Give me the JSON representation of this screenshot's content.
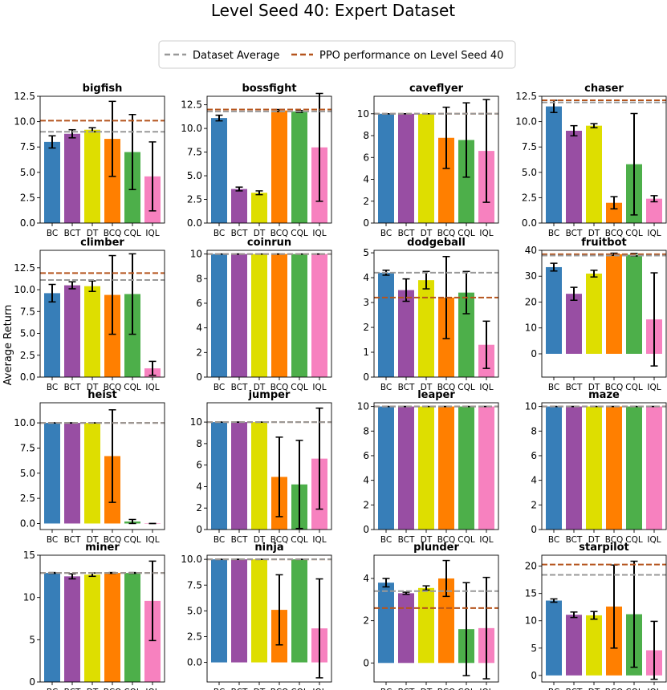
{
  "figure": {
    "title": "Level Seed 40: Expert Dataset",
    "ylabel": "Average Return",
    "legend": {
      "placement": "top-center",
      "items": [
        {
          "label": "Dataset Average",
          "color": "#999999"
        },
        {
          "label": "PPO performance on Level Seed 40",
          "color": "#b5541d"
        }
      ]
    }
  },
  "colors": {
    "BC": "#377eb8",
    "BCT": "#984ea3",
    "DT": "#dede00",
    "BCQ": "#ff7f00",
    "CQL": "#4daf4a",
    "IQL": "#f781bf",
    "dataset_line": "#999999",
    "ppo_line": "#b5541d"
  },
  "chart_data": [
    {
      "type": "bar",
      "title": "bigfish",
      "categories": [
        "BC",
        "BCT",
        "DT",
        "BCQ",
        "CQL",
        "IQL"
      ],
      "values": [
        8.0,
        8.8,
        9.2,
        8.3,
        7.0,
        4.6
      ],
      "errors": [
        0.6,
        0.4,
        0.2,
        3.7,
        3.7,
        3.4
      ],
      "dataset_avg": 9.0,
      "ppo": 10.1,
      "ylim": [
        0,
        12.5
      ],
      "yticks": [
        "0.0",
        "2.5",
        "5.0",
        "7.5",
        "10.0",
        "12.5"
      ]
    },
    {
      "type": "bar",
      "title": "bossfight",
      "categories": [
        "BC",
        "BCT",
        "DT",
        "BCQ",
        "CQL",
        "IQL"
      ],
      "values": [
        11.1,
        3.6,
        3.2,
        11.9,
        11.8,
        8.0
      ],
      "errors": [
        0.3,
        0.2,
        0.2,
        0.1,
        0.1,
        5.7
      ],
      "dataset_avg": 11.8,
      "ppo": 12.0,
      "ylim": [
        0,
        13.4
      ],
      "yticks": [
        "0.0",
        "2.5",
        "5.0",
        "7.5",
        "10.0",
        "12.5"
      ]
    },
    {
      "type": "bar",
      "title": "caveflyer",
      "categories": [
        "BC",
        "BCT",
        "DT",
        "BCQ",
        "CQL",
        "IQL"
      ],
      "values": [
        10.0,
        10.0,
        10.0,
        7.8,
        7.6,
        6.6
      ],
      "errors": [
        0.0,
        0.0,
        0.0,
        2.8,
        3.4,
        4.7
      ],
      "dataset_avg": 10.0,
      "ppo": 10.0,
      "ylim": [
        0,
        11.6
      ],
      "yticks": [
        "0",
        "2",
        "4",
        "6",
        "8",
        "10"
      ]
    },
    {
      "type": "bar",
      "title": "chaser",
      "categories": [
        "BC",
        "BCT",
        "DT",
        "BCQ",
        "CQL",
        "IQL"
      ],
      "values": [
        11.5,
        9.1,
        9.6,
        2.0,
        5.8,
        2.4
      ],
      "errors": [
        0.6,
        0.5,
        0.2,
        0.6,
        5.0,
        0.3
      ],
      "dataset_avg": 11.9,
      "ppo": 12.1,
      "ylim": [
        0,
        12.5
      ],
      "yticks": [
        "0.0",
        "2.5",
        "5.0",
        "7.5",
        "10.0",
        "12.5"
      ]
    },
    {
      "type": "bar",
      "title": "climber",
      "categories": [
        "BC",
        "BCT",
        "DT",
        "BCQ",
        "CQL",
        "IQL"
      ],
      "values": [
        9.6,
        10.5,
        10.4,
        9.4,
        9.5,
        1.0
      ],
      "errors": [
        1.0,
        0.4,
        0.6,
        4.5,
        4.6,
        0.8
      ],
      "dataset_avg": 11.1,
      "ppo": 11.9,
      "ylim": [
        0,
        14.5
      ],
      "yticks": [
        "0.0",
        "2.5",
        "5.0",
        "7.5",
        "10.0",
        "12.5"
      ]
    },
    {
      "type": "bar",
      "title": "coinrun",
      "categories": [
        "BC",
        "BCT",
        "DT",
        "BCQ",
        "CQL",
        "IQL"
      ],
      "values": [
        10.0,
        10.0,
        10.0,
        10.0,
        10.0,
        10.0
      ],
      "errors": [
        0,
        0,
        0,
        0,
        0,
        0
      ],
      "dataset_avg": 10.0,
      "ppo": 10.0,
      "ylim": [
        0,
        10.3
      ],
      "yticks": [
        "0",
        "2",
        "4",
        "6",
        "8",
        "10"
      ]
    },
    {
      "type": "bar",
      "title": "dodgeball",
      "categories": [
        "BC",
        "BCT",
        "DT",
        "BCQ",
        "CQL",
        "IQL"
      ],
      "values": [
        4.2,
        3.5,
        3.9,
        3.2,
        3.4,
        1.3
      ],
      "errors": [
        0.1,
        0.45,
        0.35,
        1.65,
        0.85,
        0.95
      ],
      "dataset_avg": 4.2,
      "ppo": 3.2,
      "ylim": [
        0,
        5.1
      ],
      "yticks": [
        "0",
        "1",
        "2",
        "3",
        "4",
        "5"
      ]
    },
    {
      "type": "bar",
      "title": "fruitbot",
      "categories": [
        "BC",
        "BCT",
        "DT",
        "BCQ",
        "CQL",
        "IQL"
      ],
      "values": [
        33.5,
        23.2,
        31.0,
        38.5,
        38.3,
        13.3
      ],
      "errors": [
        1.5,
        2.5,
        1.3,
        0.4,
        0.5,
        18.0
      ],
      "dataset_avg": 38.0,
      "ppo": 38.5,
      "ylim": [
        -9,
        40
      ],
      "yticks": [
        "0",
        "10",
        "20",
        "30",
        "40"
      ]
    },
    {
      "type": "bar",
      "title": "heist",
      "categories": [
        "BC",
        "BCT",
        "DT",
        "BCQ",
        "CQL",
        "IQL"
      ],
      "values": [
        10.0,
        10.0,
        10.0,
        6.7,
        0.2,
        0.0
      ],
      "errors": [
        0.0,
        0.0,
        0.0,
        4.6,
        0.2,
        0.0
      ],
      "dataset_avg": 10.0,
      "ppo": 10.0,
      "ylim": [
        -0.6,
        12.0
      ],
      "yticks": [
        "0.0",
        "2.5",
        "5.0",
        "7.5",
        "10.0"
      ]
    },
    {
      "type": "bar",
      "title": "jumper",
      "categories": [
        "BC",
        "BCT",
        "DT",
        "BCQ",
        "CQL",
        "IQL"
      ],
      "values": [
        10.0,
        10.0,
        10.0,
        4.9,
        4.2,
        6.6
      ],
      "errors": [
        0.0,
        0.0,
        0.0,
        3.7,
        4.1,
        4.7
      ],
      "dataset_avg": 10.0,
      "ppo": 10.0,
      "ylim": [
        0,
        11.8
      ],
      "yticks": [
        "0",
        "2",
        "4",
        "6",
        "8",
        "10"
      ]
    },
    {
      "type": "bar",
      "title": "leaper",
      "categories": [
        "BC",
        "BCT",
        "DT",
        "BCQ",
        "CQL",
        "IQL"
      ],
      "values": [
        10.0,
        10.0,
        10.0,
        10.0,
        10.0,
        10.0
      ],
      "errors": [
        0,
        0,
        0,
        0,
        0,
        0
      ],
      "dataset_avg": 10.0,
      "ppo": 10.0,
      "ylim": [
        0,
        10.3
      ],
      "yticks": [
        "0",
        "2",
        "4",
        "6",
        "8",
        "10"
      ]
    },
    {
      "type": "bar",
      "title": "maze",
      "categories": [
        "BC",
        "BCT",
        "DT",
        "BCQ",
        "CQL",
        "IQL"
      ],
      "values": [
        10.0,
        10.0,
        10.0,
        10.0,
        10.0,
        10.0
      ],
      "errors": [
        0,
        0,
        0,
        0,
        0,
        0
      ],
      "dataset_avg": 10.0,
      "ppo": 10.0,
      "ylim": [
        0,
        10.3
      ],
      "yticks": [
        "0",
        "2",
        "4",
        "6",
        "8",
        "10"
      ]
    },
    {
      "type": "bar",
      "title": "miner",
      "categories": [
        "BC",
        "BCT",
        "DT",
        "BCQ",
        "CQL",
        "IQL"
      ],
      "values": [
        12.9,
        12.5,
        12.7,
        12.9,
        12.9,
        9.6
      ],
      "errors": [
        0.05,
        0.3,
        0.2,
        0.05,
        0.05,
        4.7
      ],
      "dataset_avg": 12.9,
      "ppo": 12.9,
      "ylim": [
        0,
        15
      ],
      "yticks": [
        "0",
        "5",
        "10",
        "15"
      ]
    },
    {
      "type": "bar",
      "title": "ninja",
      "categories": [
        "BC",
        "BCT",
        "DT",
        "BCQ",
        "CQL",
        "IQL"
      ],
      "values": [
        10.0,
        10.0,
        10.0,
        5.1,
        10.0,
        3.3
      ],
      "errors": [
        0.0,
        0.0,
        0.0,
        3.4,
        0.0,
        4.8
      ],
      "dataset_avg": 10.0,
      "ppo": 10.0,
      "ylim": [
        -1.9,
        10.4
      ],
      "yticks": [
        "0.0",
        "2.5",
        "5.0",
        "7.5",
        "10.0"
      ]
    },
    {
      "type": "bar",
      "title": "plunder",
      "categories": [
        "BC",
        "BCT",
        "DT",
        "BCQ",
        "CQL",
        "IQL"
      ],
      "values": [
        3.8,
        3.3,
        3.55,
        4.0,
        1.6,
        1.65
      ],
      "errors": [
        0.2,
        0.05,
        0.1,
        0.85,
        2.2,
        2.4
      ],
      "dataset_avg": 3.4,
      "ppo": 2.6,
      "ylim": [
        -0.9,
        5.1
      ],
      "yticks": [
        "0",
        "2",
        "4"
      ]
    },
    {
      "type": "bar",
      "title": "starpilot",
      "categories": [
        "BC",
        "BCT",
        "DT",
        "BCQ",
        "CQL",
        "IQL"
      ],
      "values": [
        13.7,
        11.1,
        11.0,
        12.6,
        11.2,
        4.6
      ],
      "errors": [
        0.3,
        0.5,
        0.7,
        7.6,
        9.7,
        5.3
      ],
      "dataset_avg": 18.4,
      "ppo": 20.3,
      "ylim": [
        -1.2,
        22
      ],
      "yticks": [
        "0",
        "5",
        "10",
        "15",
        "20"
      ]
    }
  ]
}
